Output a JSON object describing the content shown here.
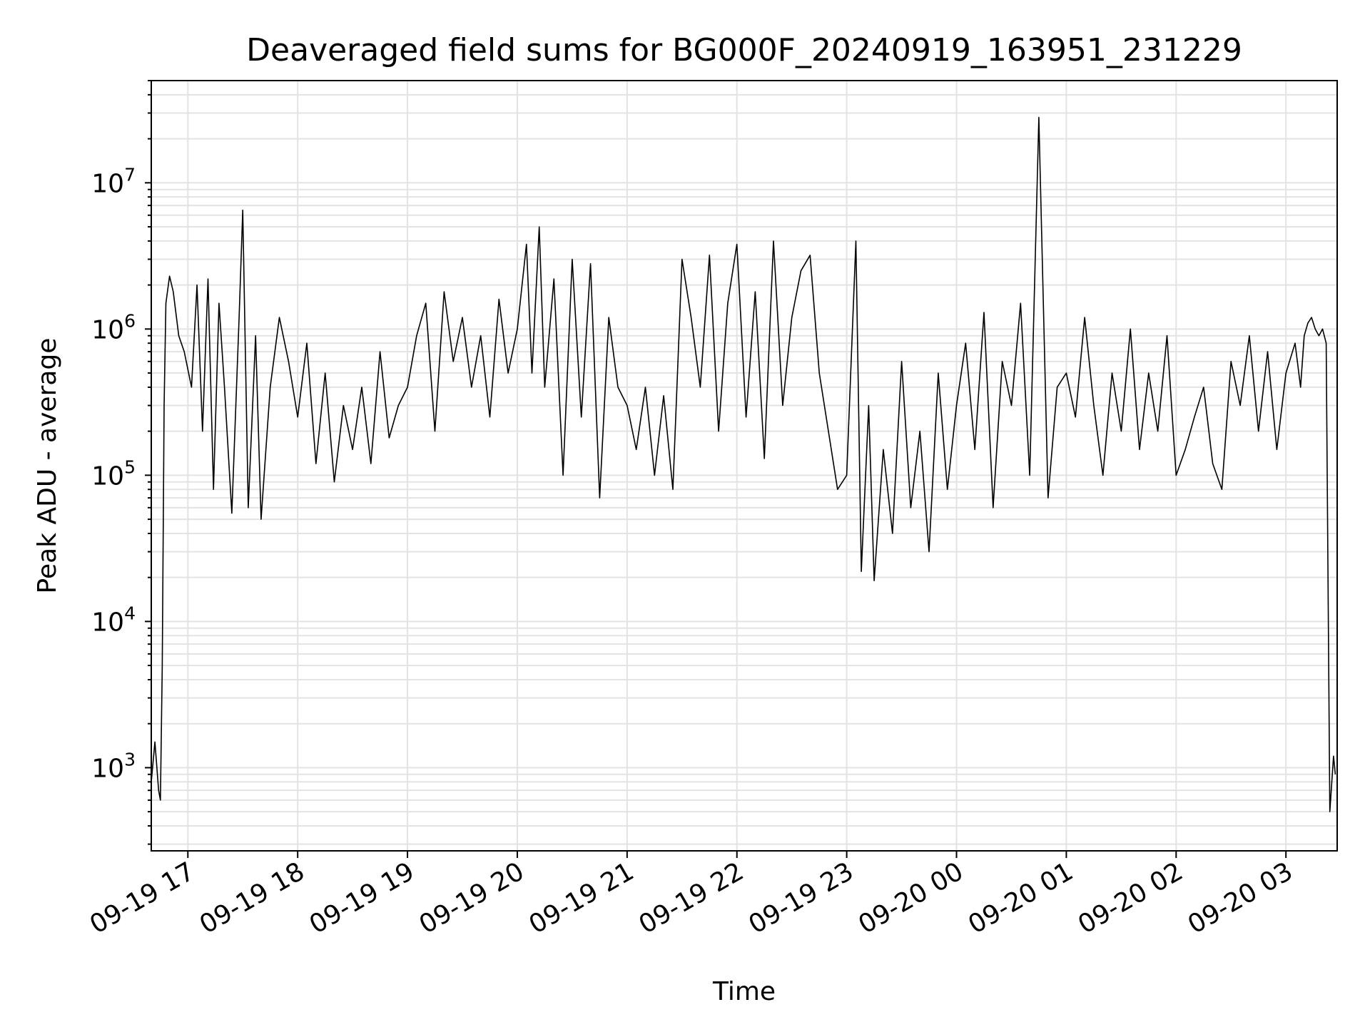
{
  "chart_data": {
    "type": "line",
    "title": "Deaveraged field sums for BG000F_20240919_163951_231229",
    "xlabel": "Time",
    "ylabel": "Peak ADU - average",
    "yscale": "log",
    "ylim": [
      270,
      50000000
    ],
    "xlim": [
      "2024-09-19 16:40",
      "2024-09-20 03:28"
    ],
    "grid": true,
    "line_color": "#000000",
    "grid_color": "#e3e3e3",
    "x_ticks": [
      {
        "value": "2024-09-19 17:00",
        "label": "09-19 17"
      },
      {
        "value": "2024-09-19 18:00",
        "label": "09-19 18"
      },
      {
        "value": "2024-09-19 19:00",
        "label": "09-19 19"
      },
      {
        "value": "2024-09-19 20:00",
        "label": "09-19 20"
      },
      {
        "value": "2024-09-19 21:00",
        "label": "09-19 21"
      },
      {
        "value": "2024-09-19 22:00",
        "label": "09-19 22"
      },
      {
        "value": "2024-09-19 23:00",
        "label": "09-19 23"
      },
      {
        "value": "2024-09-20 00:00",
        "label": "09-20 00"
      },
      {
        "value": "2024-09-20 01:00",
        "label": "09-20 01"
      },
      {
        "value": "2024-09-20 02:00",
        "label": "09-20 02"
      },
      {
        "value": "2024-09-20 03:00",
        "label": "09-20 03"
      }
    ],
    "y_ticks": [
      {
        "value": 1000,
        "label": "10",
        "exp": "3"
      },
      {
        "value": 10000,
        "label": "10",
        "exp": "4"
      },
      {
        "value": 100000,
        "label": "10",
        "exp": "5"
      },
      {
        "value": 1000000,
        "label": "10",
        "exp": "6"
      },
      {
        "value": 10000000,
        "label": "10",
        "exp": "7"
      }
    ],
    "series": [
      {
        "x": [
          "2024-09-19 16:40",
          "2024-09-19 16:42",
          "2024-09-19 16:44",
          "2024-09-19 16:45",
          "2024-09-19 16:46",
          "2024-09-19 16:47",
          "2024-09-19 16:48",
          "2024-09-19 16:50",
          "2024-09-19 16:52",
          "2024-09-19 16:55",
          "2024-09-19 16:58",
          "2024-09-19 17:02",
          "2024-09-19 17:05",
          "2024-09-19 17:08",
          "2024-09-19 17:11",
          "2024-09-19 17:14",
          "2024-09-19 17:17",
          "2024-09-19 17:20",
          "2024-09-19 17:24",
          "2024-09-19 17:28",
          "2024-09-19 17:30",
          "2024-09-19 17:33",
          "2024-09-19 17:37",
          "2024-09-19 17:40",
          "2024-09-19 17:45",
          "2024-09-19 17:50",
          "2024-09-19 17:55",
          "2024-09-19 18:00",
          "2024-09-19 18:05",
          "2024-09-19 18:10",
          "2024-09-19 18:15",
          "2024-09-19 18:20",
          "2024-09-19 18:25",
          "2024-09-19 18:30",
          "2024-09-19 18:35",
          "2024-09-19 18:40",
          "2024-09-19 18:45",
          "2024-09-19 18:50",
          "2024-09-19 18:55",
          "2024-09-19 19:00",
          "2024-09-19 19:05",
          "2024-09-19 19:10",
          "2024-09-19 19:15",
          "2024-09-19 19:20",
          "2024-09-19 19:25",
          "2024-09-19 19:30",
          "2024-09-19 19:35",
          "2024-09-19 19:40",
          "2024-09-19 19:45",
          "2024-09-19 19:50",
          "2024-09-19 19:55",
          "2024-09-19 20:00",
          "2024-09-19 20:05",
          "2024-09-19 20:08",
          "2024-09-19 20:12",
          "2024-09-19 20:15",
          "2024-09-19 20:20",
          "2024-09-19 20:25",
          "2024-09-19 20:30",
          "2024-09-19 20:35",
          "2024-09-19 20:40",
          "2024-09-19 20:45",
          "2024-09-19 20:50",
          "2024-09-19 20:55",
          "2024-09-19 21:00",
          "2024-09-19 21:05",
          "2024-09-19 21:10",
          "2024-09-19 21:15",
          "2024-09-19 21:20",
          "2024-09-19 21:25",
          "2024-09-19 21:30",
          "2024-09-19 21:35",
          "2024-09-19 21:40",
          "2024-09-19 21:45",
          "2024-09-19 21:50",
          "2024-09-19 21:55",
          "2024-09-19 22:00",
          "2024-09-19 22:05",
          "2024-09-19 22:10",
          "2024-09-19 22:15",
          "2024-09-19 22:20",
          "2024-09-19 22:25",
          "2024-09-19 22:30",
          "2024-09-19 22:35",
          "2024-09-19 22:40",
          "2024-09-19 22:45",
          "2024-09-19 22:50",
          "2024-09-19 22:55",
          "2024-09-19 23:00",
          "2024-09-19 23:05",
          "2024-09-19 23:08",
          "2024-09-19 23:12",
          "2024-09-19 23:15",
          "2024-09-19 23:20",
          "2024-09-19 23:25",
          "2024-09-19 23:30",
          "2024-09-19 23:35",
          "2024-09-19 23:40",
          "2024-09-19 23:45",
          "2024-09-19 23:50",
          "2024-09-19 23:55",
          "2024-09-20 00:00",
          "2024-09-20 00:05",
          "2024-09-20 00:10",
          "2024-09-20 00:15",
          "2024-09-20 00:20",
          "2024-09-20 00:25",
          "2024-09-20 00:30",
          "2024-09-20 00:35",
          "2024-09-20 00:40",
          "2024-09-20 00:45",
          "2024-09-20 00:50",
          "2024-09-20 00:55",
          "2024-09-20 01:00",
          "2024-09-20 01:05",
          "2024-09-20 01:10",
          "2024-09-20 01:15",
          "2024-09-20 01:20",
          "2024-09-20 01:25",
          "2024-09-20 01:30",
          "2024-09-20 01:35",
          "2024-09-20 01:40",
          "2024-09-20 01:45",
          "2024-09-20 01:50",
          "2024-09-20 01:55",
          "2024-09-20 02:00",
          "2024-09-20 02:05",
          "2024-09-20 02:10",
          "2024-09-20 02:15",
          "2024-09-20 02:20",
          "2024-09-20 02:25",
          "2024-09-20 02:30",
          "2024-09-20 02:35",
          "2024-09-20 02:40",
          "2024-09-20 02:45",
          "2024-09-20 02:50",
          "2024-09-20 02:55",
          "2024-09-20 03:00",
          "2024-09-20 03:05",
          "2024-09-20 03:08",
          "2024-09-20 03:10",
          "2024-09-20 03:12",
          "2024-09-20 03:14",
          "2024-09-20 03:16",
          "2024-09-20 03:18",
          "2024-09-20 03:20",
          "2024-09-20 03:22",
          "2024-09-20 03:24",
          "2024-09-20 03:26",
          "2024-09-20 03:27"
        ],
        "y": [
          800,
          1500,
          700,
          600,
          5000,
          300000,
          1500000,
          2300000,
          1800000,
          900000,
          700000,
          400000,
          2000000,
          200000,
          2200000,
          80000,
          1500000,
          400000,
          55000,
          1200000,
          6500000,
          60000,
          900000,
          50000,
          400000,
          1200000,
          600000,
          250000,
          800000,
          120000,
          500000,
          90000,
          300000,
          150000,
          400000,
          120000,
          700000,
          180000,
          300000,
          400000,
          900000,
          1500000,
          200000,
          1800000,
          600000,
          1200000,
          400000,
          900000,
          250000,
          1600000,
          500000,
          1000000,
          3800000,
          500000,
          5000000,
          400000,
          2200000,
          100000,
          3000000,
          250000,
          2800000,
          70000,
          1200000,
          400000,
          300000,
          150000,
          400000,
          100000,
          350000,
          80000,
          3000000,
          1200000,
          400000,
          3200000,
          200000,
          1500000,
          3800000,
          250000,
          1800000,
          130000,
          4000000,
          300000,
          1200000,
          2500000,
          3200000,
          500000,
          200000,
          80000,
          100000,
          4000000,
          22000,
          300000,
          19000,
          150000,
          40000,
          600000,
          60000,
          200000,
          30000,
          500000,
          80000,
          300000,
          800000,
          150000,
          1300000,
          60000,
          600000,
          300000,
          1500000,
          100000,
          28000000,
          70000,
          400000,
          500000,
          250000,
          1200000,
          300000,
          100000,
          500000,
          200000,
          1000000,
          150000,
          500000,
          200000,
          900000,
          100000,
          150000,
          250000,
          400000,
          120000,
          80000,
          600000,
          300000,
          900000,
          200000,
          700000,
          150000,
          500000,
          800000,
          400000,
          900000,
          1100000,
          1200000,
          1000000,
          900000,
          1000000,
          800000,
          500,
          1200,
          900
        ]
      }
    ]
  }
}
